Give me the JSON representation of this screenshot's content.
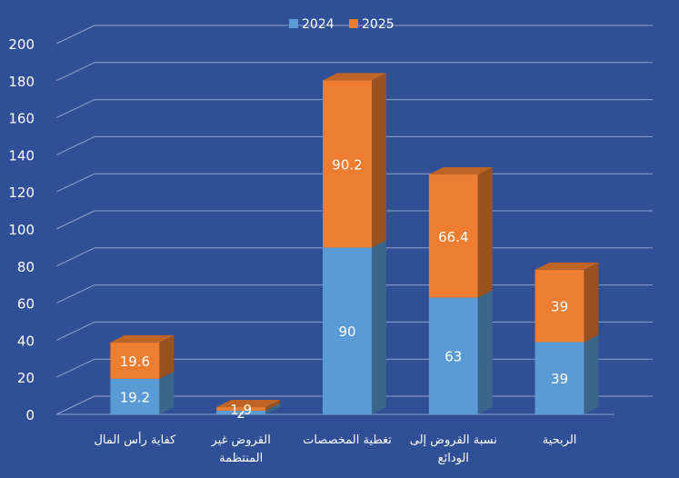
{
  "colors": {
    "background": "#2f4f97",
    "gridline": "#8ea3cf",
    "axis_text": "#ffffff",
    "series_2024": "#5b9bd5",
    "series_2025": "#ed7d31"
  },
  "chart_data": {
    "type": "bar",
    "stacked": true,
    "three_d": true,
    "title": "",
    "xlabel": "",
    "ylabel": "",
    "ylim": [
      0,
      200
    ],
    "yticks": [
      0,
      20,
      40,
      60,
      80,
      100,
      120,
      140,
      160,
      180,
      200
    ],
    "legend_position": "top-center",
    "grid": true,
    "categories": [
      [
        "كفاية رأس المال"
      ],
      [
        "القروض غير",
        "المنتظمة"
      ],
      [
        "تغطية المخصصات"
      ],
      [
        "نسبة القروض إلى",
        "الودائع"
      ],
      [
        "الربحية"
      ]
    ],
    "series": [
      {
        "name": "2024",
        "values": [
          19.2,
          2,
          90,
          63,
          39
        ],
        "labels": [
          "19.2",
          "2",
          "90",
          "63",
          "39"
        ]
      },
      {
        "name": "2025",
        "values": [
          19.6,
          1.9,
          90.2,
          66.4,
          39
        ],
        "labels": [
          "19.6",
          "1.9",
          "90.2",
          "66.4",
          "39"
        ]
      }
    ]
  }
}
